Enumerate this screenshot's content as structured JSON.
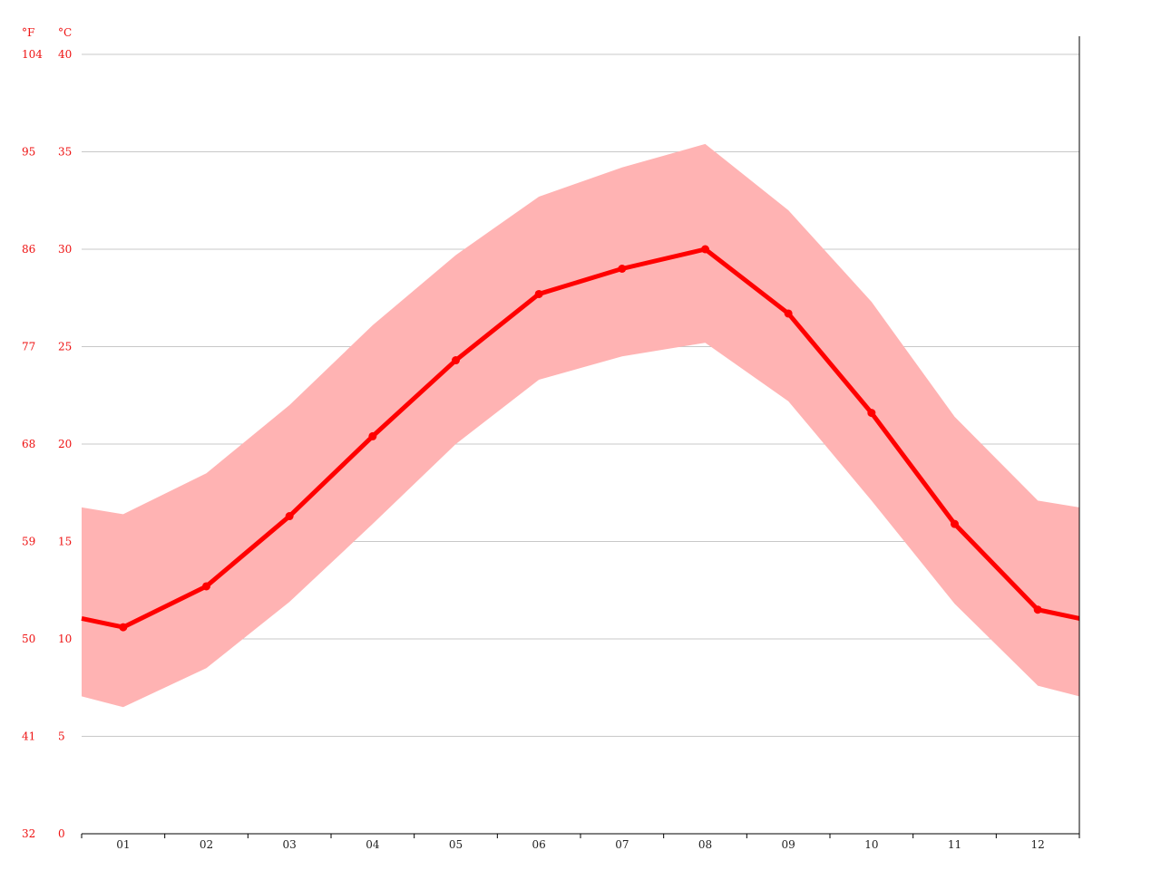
{
  "chart_data": {
    "type": "line",
    "axis_units": {
      "fahrenheit": "°F",
      "celsius": "°C"
    },
    "y_ticks_celsius": [
      "0",
      "5",
      "10",
      "15",
      "20",
      "25",
      "30",
      "35",
      "40"
    ],
    "y_ticks_fahrenheit": [
      "32",
      "41",
      "50",
      "59",
      "68",
      "77",
      "86",
      "95",
      "104"
    ],
    "ylim": [
      0,
      40
    ],
    "categories": [
      "01",
      "02",
      "03",
      "04",
      "05",
      "06",
      "07",
      "08",
      "09",
      "10",
      "11",
      "12"
    ],
    "series": [
      {
        "values": [
          10.6,
          12.7,
          16.3,
          20.4,
          24.3,
          27.7,
          29.0,
          30.0,
          26.7,
          21.6,
          15.9,
          11.5
        ]
      }
    ],
    "range": {
      "min": [
        6.5,
        8.5,
        11.9,
        15.9,
        20.0,
        23.3,
        24.5,
        25.2,
        22.2,
        17.1,
        11.8,
        7.6
      ],
      "max": [
        16.4,
        18.5,
        22.0,
        26.1,
        29.7,
        32.7,
        34.2,
        35.4,
        32.0,
        27.3,
        21.4,
        17.1
      ]
    },
    "grid": true,
    "colors": {
      "line": "#ff0000",
      "band": "#ffb3b3",
      "tick_text": "#ee1111",
      "grid": "#c8c8c8"
    }
  }
}
